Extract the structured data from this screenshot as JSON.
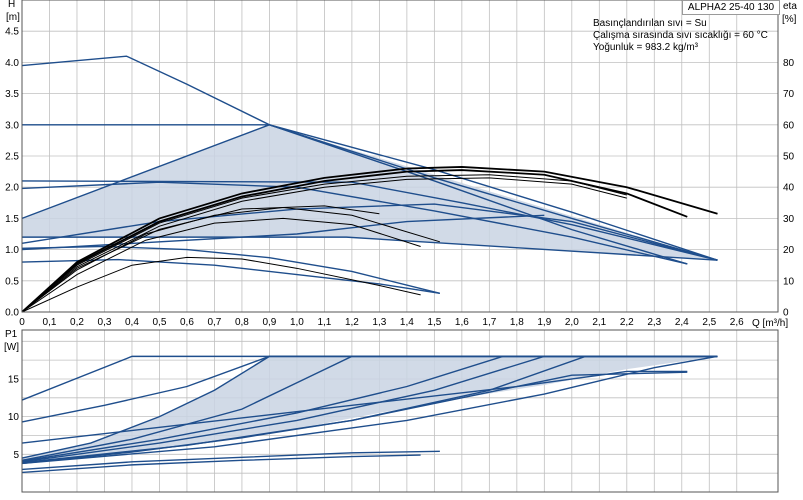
{
  "model": "ALPHA2 25-40 130",
  "medium": {
    "liquid": "Basınçlandırılan sıvı = Su",
    "temperature": "Çalışma sırasında sıvı sıcaklığı = 60 °C",
    "density": "Yoğunluk = 983.2 kg/m³"
  },
  "chart_data": [
    {
      "id": "head",
      "type": "line",
      "ylabel_top": "H",
      "ylabel_unit": "[m]",
      "y2label_top": "eta",
      "y2label_unit": "[%]",
      "xlabel": "Q [m³/h]",
      "xlim": [
        0,
        2.75
      ],
      "ylim": [
        0,
        5.0
      ],
      "y2lim": [
        0,
        100
      ],
      "grid": true,
      "x_ticks": [
        "0",
        "0,1",
        "0,2",
        "0,3",
        "0,4",
        "0,5",
        "0,6",
        "0,7",
        "0,8",
        "0,9",
        "1,0",
        "1,1",
        "1,2",
        "1,3",
        "1,4",
        "1,5",
        "1,6",
        "1,7",
        "1,8",
        "1,9",
        "2,0",
        "2,1",
        "2,2",
        "2,3",
        "2,4",
        "2,5",
        "2,6"
      ],
      "y_ticks": [
        "0.0",
        "0.5",
        "1.0",
        "1.5",
        "2.0",
        "2.5",
        "3.0",
        "3.5",
        "4.0",
        "4.5"
      ],
      "y2_ticks": [
        "0",
        "10",
        "20",
        "30",
        "40",
        "50",
        "60",
        "70",
        "80"
      ],
      "area": {
        "x": [
          0,
          0.9,
          2.53,
          1.18,
          0
        ],
        "y": [
          1.5,
          3.0,
          0.83,
          1.2,
          1.2
        ]
      },
      "pump_curves": [
        {
          "x": [
            0,
            0.38,
            0.6,
            0.9,
            1.5,
            2.0,
            2.42
          ],
          "y": [
            3.95,
            4.1,
            3.65,
            3.0,
            2.1,
            1.32,
            0.77
          ]
        },
        {
          "x": [
            0,
            0.9,
            1.5,
            2.0,
            2.53
          ],
          "y": [
            3.0,
            3.0,
            2.28,
            1.6,
            0.83
          ]
        },
        {
          "x": [
            0,
            0.9,
            1.5,
            2.0,
            2.53
          ],
          "y": [
            1.5,
            3.0,
            2.15,
            1.5,
            0.83
          ]
        },
        {
          "x": [
            0,
            1.2,
            1.6,
            2.0,
            2.53
          ],
          "y": [
            2.1,
            2.08,
            1.75,
            1.4,
            0.83
          ]
        },
        {
          "x": [
            0,
            0.5,
            1.0,
            1.5,
            2.0,
            2.42
          ],
          "y": [
            1.98,
            2.08,
            2.0,
            1.62,
            1.2,
            0.77
          ]
        },
        {
          "x": [
            0,
            0.5,
            1.0,
            1.5,
            2.0,
            2.53
          ],
          "y": [
            1.1,
            1.45,
            1.65,
            1.73,
            1.45,
            0.83
          ]
        },
        {
          "x": [
            0,
            1.18,
            2.53
          ],
          "y": [
            1.2,
            1.2,
            0.83
          ]
        },
        {
          "x": [
            0,
            1.0,
            1.4,
            1.9
          ],
          "y": [
            1.0,
            1.25,
            1.45,
            1.55
          ]
        },
        {
          "x": [
            0,
            0.3,
            0.6,
            0.9,
            1.2,
            1.52
          ],
          "y": [
            1.02,
            1.05,
            1.0,
            0.87,
            0.65,
            0.3
          ]
        },
        {
          "x": [
            0,
            0.35,
            0.7,
            1.0,
            1.3,
            1.52
          ],
          "y": [
            0.8,
            0.84,
            0.75,
            0.6,
            0.45,
            0.3
          ]
        }
      ],
      "eta_curves": [
        {
          "x": [
            0,
            0.2,
            0.5,
            0.8,
            1.1,
            1.4,
            1.6,
            1.9,
            2.2,
            2.53
          ],
          "y": [
            0,
            16,
            30,
            38,
            43,
            46,
            46.5,
            45,
            40,
            31.5
          ]
        },
        {
          "x": [
            0,
            0.2,
            0.5,
            0.8,
            1.1,
            1.4,
            1.6,
            1.9,
            2.2,
            2.42
          ],
          "y": [
            0,
            15.5,
            29,
            37,
            42,
            45,
            45.5,
            44,
            38,
            30.5
          ]
        },
        {
          "x": [
            0,
            0.2,
            0.5,
            0.8,
            1.1,
            1.4,
            1.7,
            2.0,
            2.2
          ],
          "y": [
            0,
            15,
            28.5,
            36.5,
            41,
            43.5,
            44,
            42,
            37.5
          ]
        },
        {
          "x": [
            0,
            0.2,
            0.5,
            0.8,
            1.1,
            1.4,
            1.7,
            2.0,
            2.2
          ],
          "y": [
            0,
            14.5,
            27.5,
            35.5,
            40,
            42.5,
            43,
            41,
            36.5
          ]
        },
        {
          "x": [
            0,
            0.2,
            0.5,
            0.8,
            1.1,
            1.3
          ],
          "y": [
            0,
            14,
            26.5,
            33,
            34,
            31.5
          ]
        },
        {
          "x": [
            0,
            0.2,
            0.45,
            0.7,
            0.95,
            1.2,
            1.52
          ],
          "y": [
            0,
            13.5,
            25,
            31,
            33.5,
            31,
            22.5
          ]
        },
        {
          "x": [
            0,
            0.2,
            0.45,
            0.7,
            0.95,
            1.2,
            1.45
          ],
          "y": [
            0,
            12,
            23,
            28.5,
            30,
            28,
            21
          ]
        },
        {
          "x": [
            0,
            0.2,
            0.4,
            0.6,
            0.8,
            1.0,
            1.3,
            1.45
          ],
          "y": [
            0,
            8,
            15,
            17.5,
            17,
            14,
            8.5,
            5.5
          ]
        }
      ]
    },
    {
      "id": "power",
      "type": "line",
      "ylabel_top": "P1",
      "ylabel_unit": "[W]",
      "xlim": [
        0,
        2.75
      ],
      "ylim": [
        0,
        21.5
      ],
      "grid": true,
      "y_ticks": [
        "5",
        "10",
        "15"
      ],
      "area": {
        "x": [
          0,
          0.25,
          0.5,
          0.7,
          0.9,
          1.2,
          1.6,
          2.0,
          2.3,
          2.53,
          2.53,
          2.2,
          1.9,
          1.6,
          1.3,
          1.0,
          0.7,
          0.4,
          0.2,
          0
        ],
        "y": [
          4.5,
          6.5,
          10,
          13.5,
          18,
          18,
          18,
          18,
          18,
          18,
          18,
          16.3,
          14.2,
          12.5,
          10.5,
          8.4,
          6.7,
          5.4,
          4.5,
          3.8
        ]
      },
      "curves": [
        {
          "x": [
            0,
            0.4,
            2.53
          ],
          "y": [
            12.2,
            18,
            18
          ]
        },
        {
          "x": [
            0,
            0.3,
            0.6,
            0.9,
            2.53
          ],
          "y": [
            9.3,
            11.5,
            14,
            18,
            18
          ]
        },
        {
          "x": [
            0,
            0.25,
            0.5,
            0.7,
            0.9,
            2.53
          ],
          "y": [
            4.5,
            6.5,
            10,
            13.5,
            18,
            18
          ]
        },
        {
          "x": [
            0,
            0.4,
            0.8,
            1.2,
            2.53
          ],
          "y": [
            4.2,
            7,
            11,
            18,
            18
          ]
        },
        {
          "x": [
            0,
            0.5,
            1.0,
            1.4,
            1.75,
            2.53
          ],
          "y": [
            4.1,
            7,
            10.5,
            14,
            18,
            18
          ]
        },
        {
          "x": [
            0,
            0.5,
            1.0,
            1.5,
            1.9,
            2.53
          ],
          "y": [
            4.0,
            6.5,
            9.5,
            13.5,
            18,
            18
          ]
        },
        {
          "x": [
            0,
            0.6,
            1.2,
            1.7,
            2.05,
            2.53
          ],
          "y": [
            3.9,
            6.2,
            9.5,
            13.5,
            18,
            18
          ]
        },
        {
          "x": [
            0,
            0.7,
            1.4,
            1.9,
            2.3,
            2.53
          ],
          "y": [
            3.8,
            6.0,
            9.5,
            13,
            16.5,
            18
          ]
        },
        {
          "x": [
            0,
            0.4,
            0.8,
            1.2,
            1.6,
            2.0,
            2.42
          ],
          "y": [
            3.8,
            5.3,
            7.2,
            9.5,
            12.5,
            15.5,
            15.9
          ]
        },
        {
          "x": [
            0,
            0.6,
            1.2,
            1.8,
            2.2,
            2.42
          ],
          "y": [
            6.5,
            9,
            11.5,
            14,
            16,
            16
          ]
        },
        {
          "x": [
            0,
            0.4,
            0.8,
            1.2,
            1.52
          ],
          "y": [
            3.0,
            4.0,
            4.6,
            5.2,
            5.4
          ]
        },
        {
          "x": [
            0,
            0.4,
            0.8,
            1.2,
            1.45
          ],
          "y": [
            2.6,
            3.6,
            4.2,
            4.7,
            4.9
          ]
        }
      ]
    }
  ],
  "colors": {
    "curve": "#1f4e8c",
    "eta": "#000000",
    "area": "#c9d4e3",
    "grid": "#c0c0c0",
    "frame": "#555555"
  }
}
